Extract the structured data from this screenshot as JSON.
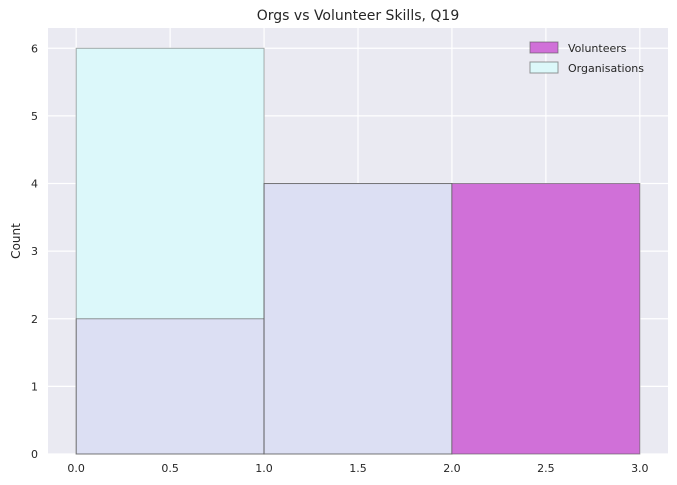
{
  "chart_data": {
    "type": "bar",
    "title": "Orgs vs Volunteer Skills, Q19",
    "xlabel": "",
    "ylabel": "Count",
    "xlim": [
      -0.15,
      3.15
    ],
    "ylim": [
      0,
      6.3
    ],
    "xticks": [
      "0.0",
      "0.5",
      "1.0",
      "1.5",
      "2.0",
      "2.5",
      "3.0"
    ],
    "xtick_values": [
      0,
      0.5,
      1,
      1.5,
      2,
      2.5,
      3
    ],
    "yticks": [
      "0",
      "1",
      "2",
      "3",
      "4",
      "5",
      "6"
    ],
    "ytick_values": [
      0,
      1,
      2,
      3,
      4,
      5,
      6
    ],
    "bins": [
      [
        0,
        1
      ],
      [
        1,
        2
      ],
      [
        2,
        3
      ]
    ],
    "series": [
      {
        "name": "Volunteers",
        "values": [
          2,
          4,
          4
        ],
        "color": "#d070d8"
      },
      {
        "name": "Organisations",
        "values": [
          6,
          4,
          0
        ],
        "color": "#dcf8fa"
      }
    ],
    "overlap_color": "#dcdff3",
    "grid": true,
    "legend_position": "top-right",
    "background": "#eaeaf2"
  }
}
